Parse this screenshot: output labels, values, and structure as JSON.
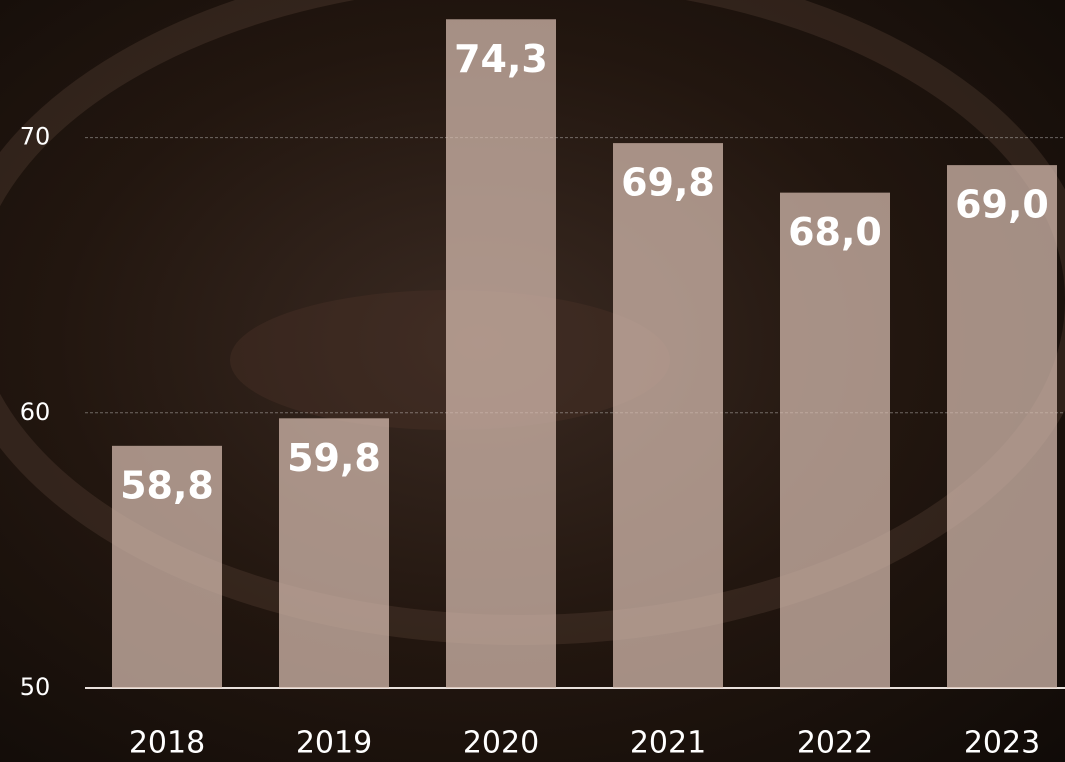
{
  "chart_data": {
    "type": "bar",
    "categories": [
      "2018",
      "2019",
      "2020",
      "2021",
      "2022",
      "2023"
    ],
    "values": [
      58.8,
      59.8,
      74.3,
      69.8,
      68.0,
      69.0
    ],
    "value_labels": [
      "58,8",
      "59,8",
      "74,3",
      "69,8",
      "68,0",
      "69,0"
    ],
    "color": "#d9bfb3",
    "ylim": [
      50,
      75
    ],
    "yticks": [
      50,
      60,
      70
    ],
    "grid": true
  }
}
